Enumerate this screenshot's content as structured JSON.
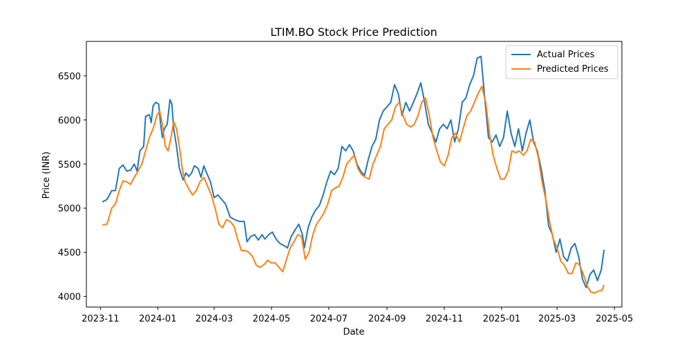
{
  "chart_data": {
    "type": "line",
    "title": "LTIM.BO Stock Price Prediction",
    "xlabel": "Date",
    "ylabel": "Price (INR)",
    "x_ticks": [
      "2023-11",
      "2024-01",
      "2024-03",
      "2024-05",
      "2024-07",
      "2024-09",
      "2024-11",
      "2025-01",
      "2025-03",
      "2025-05"
    ],
    "y_ticks": [
      4000,
      4500,
      5000,
      5500,
      6000,
      6500
    ],
    "xlim": [
      "2023-10-17",
      "2025-05-09"
    ],
    "ylim": [
      3880,
      6890
    ],
    "grid": false,
    "legend_position": "top-right",
    "series": [
      {
        "name": "Actual Prices",
        "color": "#1f77b4",
        "points": [
          [
            "2023-11-03",
            5070
          ],
          [
            "2023-11-08",
            5100
          ],
          [
            "2023-11-13",
            5200
          ],
          [
            "2023-11-17",
            5200
          ],
          [
            "2023-11-21",
            5450
          ],
          [
            "2023-11-25",
            5490
          ],
          [
            "2023-11-29",
            5420
          ],
          [
            "2023-12-03",
            5430
          ],
          [
            "2023-12-07",
            5500
          ],
          [
            "2023-12-10",
            5420
          ],
          [
            "2023-12-13",
            5650
          ],
          [
            "2023-12-17",
            5700
          ],
          [
            "2023-12-19",
            6040
          ],
          [
            "2023-12-23",
            6060
          ],
          [
            "2023-12-25",
            5970
          ],
          [
            "2023-12-27",
            6160
          ],
          [
            "2023-12-30",
            6200
          ],
          [
            "2024-01-02",
            6180
          ],
          [
            "2024-01-04",
            5950
          ],
          [
            "2024-01-06",
            5800
          ],
          [
            "2024-01-08",
            5900
          ],
          [
            "2024-01-11",
            5950
          ],
          [
            "2024-01-14",
            6230
          ],
          [
            "2024-01-16",
            6180
          ],
          [
            "2024-01-18",
            5900
          ],
          [
            "2024-01-21",
            5700
          ],
          [
            "2024-01-24",
            5450
          ],
          [
            "2024-01-28",
            5320
          ],
          [
            "2024-01-31",
            5400
          ],
          [
            "2024-02-03",
            5360
          ],
          [
            "2024-02-06",
            5400
          ],
          [
            "2024-02-09",
            5480
          ],
          [
            "2024-02-13",
            5450
          ],
          [
            "2024-02-16",
            5350
          ],
          [
            "2024-02-19",
            5480
          ],
          [
            "2024-02-22",
            5400
          ],
          [
            "2024-02-26",
            5300
          ],
          [
            "2024-03-01",
            5120
          ],
          [
            "2024-03-05",
            5150
          ],
          [
            "2024-03-09",
            5100
          ],
          [
            "2024-03-13",
            5050
          ],
          [
            "2024-03-18",
            4900
          ],
          [
            "2024-03-23",
            4870
          ],
          [
            "2024-03-28",
            4850
          ],
          [
            "2024-04-02",
            4850
          ],
          [
            "2024-04-05",
            4620
          ],
          [
            "2024-04-09",
            4680
          ],
          [
            "2024-04-13",
            4700
          ],
          [
            "2024-04-17",
            4640
          ],
          [
            "2024-04-21",
            4700
          ],
          [
            "2024-04-24",
            4650
          ],
          [
            "2024-04-28",
            4700
          ],
          [
            "2024-05-02",
            4730
          ],
          [
            "2024-05-06",
            4650
          ],
          [
            "2024-05-10",
            4600
          ],
          [
            "2024-05-14",
            4580
          ],
          [
            "2024-05-18",
            4550
          ],
          [
            "2024-05-22",
            4680
          ],
          [
            "2024-05-26",
            4750
          ],
          [
            "2024-05-30",
            4820
          ],
          [
            "2024-06-03",
            4700
          ],
          [
            "2024-06-05",
            4550
          ],
          [
            "2024-06-09",
            4780
          ],
          [
            "2024-06-13",
            4900
          ],
          [
            "2024-06-17",
            4980
          ],
          [
            "2024-06-21",
            5030
          ],
          [
            "2024-06-25",
            5150
          ],
          [
            "2024-06-29",
            5300
          ],
          [
            "2024-07-03",
            5420
          ],
          [
            "2024-07-07",
            5380
          ],
          [
            "2024-07-11",
            5450
          ],
          [
            "2024-07-15",
            5700
          ],
          [
            "2024-07-19",
            5650
          ],
          [
            "2024-07-23",
            5720
          ],
          [
            "2024-07-27",
            5650
          ],
          [
            "2024-07-31",
            5500
          ],
          [
            "2024-08-04",
            5420
          ],
          [
            "2024-08-08",
            5370
          ],
          [
            "2024-08-12",
            5550
          ],
          [
            "2024-08-16",
            5700
          ],
          [
            "2024-08-20",
            5780
          ],
          [
            "2024-08-24",
            6000
          ],
          [
            "2024-08-28",
            6100
          ],
          [
            "2024-09-01",
            6150
          ],
          [
            "2024-09-05",
            6200
          ],
          [
            "2024-09-09",
            6400
          ],
          [
            "2024-09-13",
            6300
          ],
          [
            "2024-09-17",
            6050
          ],
          [
            "2024-09-21",
            6200
          ],
          [
            "2024-09-25",
            6100
          ],
          [
            "2024-09-29",
            6200
          ],
          [
            "2024-10-03",
            6300
          ],
          [
            "2024-10-07",
            6420
          ],
          [
            "2024-10-11",
            6200
          ],
          [
            "2024-10-15",
            5950
          ],
          [
            "2024-10-19",
            5850
          ],
          [
            "2024-10-23",
            5750
          ],
          [
            "2024-10-27",
            5900
          ],
          [
            "2024-10-31",
            5950
          ],
          [
            "2024-11-04",
            5900
          ],
          [
            "2024-11-08",
            6000
          ],
          [
            "2024-11-12",
            5750
          ],
          [
            "2024-11-16",
            5900
          ],
          [
            "2024-11-20",
            6200
          ],
          [
            "2024-11-24",
            6250
          ],
          [
            "2024-11-28",
            6400
          ],
          [
            "2024-12-02",
            6500
          ],
          [
            "2024-12-06",
            6700
          ],
          [
            "2024-12-10",
            6720
          ],
          [
            "2024-12-14",
            6250
          ],
          [
            "2024-12-18",
            5800
          ],
          [
            "2024-12-22",
            5750
          ],
          [
            "2024-12-26",
            5830
          ],
          [
            "2024-12-30",
            5700
          ],
          [
            "2025-01-03",
            5800
          ],
          [
            "2025-01-07",
            6100
          ],
          [
            "2025-01-11",
            5850
          ],
          [
            "2025-01-15",
            5700
          ],
          [
            "2025-01-19",
            5900
          ],
          [
            "2025-01-23",
            5650
          ],
          [
            "2025-01-27",
            5850
          ],
          [
            "2025-01-31",
            6000
          ],
          [
            "2025-02-04",
            5750
          ],
          [
            "2025-02-08",
            5650
          ],
          [
            "2025-02-12",
            5450
          ],
          [
            "2025-02-16",
            5200
          ],
          [
            "2025-02-20",
            4800
          ],
          [
            "2025-02-24",
            4700
          ],
          [
            "2025-02-28",
            4500
          ],
          [
            "2025-03-04",
            4650
          ],
          [
            "2025-03-08",
            4450
          ],
          [
            "2025-03-12",
            4400
          ],
          [
            "2025-03-16",
            4550
          ],
          [
            "2025-03-20",
            4600
          ],
          [
            "2025-03-24",
            4450
          ],
          [
            "2025-03-28",
            4200
          ],
          [
            "2025-04-01",
            4100
          ],
          [
            "2025-04-05",
            4250
          ],
          [
            "2025-04-09",
            4300
          ],
          [
            "2025-04-13",
            4180
          ],
          [
            "2025-04-17",
            4300
          ],
          [
            "2025-04-20",
            4530
          ]
        ]
      },
      {
        "name": "Predicted Prices",
        "color": "#ff7f0e",
        "points": [
          [
            "2023-11-03",
            4810
          ],
          [
            "2023-11-08",
            4820
          ],
          [
            "2023-11-13",
            5000
          ],
          [
            "2023-11-17",
            5050
          ],
          [
            "2023-11-21",
            5200
          ],
          [
            "2023-11-25",
            5310
          ],
          [
            "2023-11-29",
            5300
          ],
          [
            "2023-12-03",
            5270
          ],
          [
            "2023-12-07",
            5350
          ],
          [
            "2023-12-11",
            5420
          ],
          [
            "2023-12-15",
            5500
          ],
          [
            "2023-12-19",
            5650
          ],
          [
            "2023-12-23",
            5800
          ],
          [
            "2023-12-27",
            5900
          ],
          [
            "2023-12-31",
            6050
          ],
          [
            "2024-01-03",
            6100
          ],
          [
            "2024-01-06",
            5950
          ],
          [
            "2024-01-09",
            5700
          ],
          [
            "2024-01-12",
            5650
          ],
          [
            "2024-01-15",
            5800
          ],
          [
            "2024-01-18",
            5980
          ],
          [
            "2024-01-21",
            5900
          ],
          [
            "2024-01-24",
            5700
          ],
          [
            "2024-01-27",
            5450
          ],
          [
            "2024-01-30",
            5300
          ],
          [
            "2024-02-03",
            5220
          ],
          [
            "2024-02-07",
            5150
          ],
          [
            "2024-02-11",
            5200
          ],
          [
            "2024-02-15",
            5300
          ],
          [
            "2024-02-19",
            5350
          ],
          [
            "2024-02-23",
            5250
          ],
          [
            "2024-02-27",
            5150
          ],
          [
            "2024-03-02",
            5000
          ],
          [
            "2024-03-06",
            4820
          ],
          [
            "2024-03-10",
            4780
          ],
          [
            "2024-03-14",
            4870
          ],
          [
            "2024-03-18",
            4850
          ],
          [
            "2024-03-22",
            4800
          ],
          [
            "2024-03-26",
            4650
          ],
          [
            "2024-03-30",
            4520
          ],
          [
            "2024-04-03",
            4520
          ],
          [
            "2024-04-07",
            4500
          ],
          [
            "2024-04-11",
            4450
          ],
          [
            "2024-04-15",
            4350
          ],
          [
            "2024-04-19",
            4330
          ],
          [
            "2024-04-23",
            4360
          ],
          [
            "2024-04-27",
            4410
          ],
          [
            "2024-05-01",
            4380
          ],
          [
            "2024-05-05",
            4380
          ],
          [
            "2024-05-09",
            4330
          ],
          [
            "2024-05-13",
            4280
          ],
          [
            "2024-05-17",
            4420
          ],
          [
            "2024-05-21",
            4550
          ],
          [
            "2024-05-25",
            4620
          ],
          [
            "2024-05-29",
            4700
          ],
          [
            "2024-06-02",
            4680
          ],
          [
            "2024-06-06",
            4420
          ],
          [
            "2024-06-10",
            4500
          ],
          [
            "2024-06-14",
            4700
          ],
          [
            "2024-06-18",
            4820
          ],
          [
            "2024-06-22",
            4880
          ],
          [
            "2024-06-26",
            4950
          ],
          [
            "2024-06-30",
            5050
          ],
          [
            "2024-07-04",
            5200
          ],
          [
            "2024-07-08",
            5230
          ],
          [
            "2024-07-12",
            5250
          ],
          [
            "2024-07-16",
            5350
          ],
          [
            "2024-07-20",
            5500
          ],
          [
            "2024-07-24",
            5550
          ],
          [
            "2024-07-28",
            5600
          ],
          [
            "2024-08-01",
            5450
          ],
          [
            "2024-08-05",
            5380
          ],
          [
            "2024-08-09",
            5350
          ],
          [
            "2024-08-13",
            5330
          ],
          [
            "2024-08-17",
            5500
          ],
          [
            "2024-08-21",
            5600
          ],
          [
            "2024-08-25",
            5700
          ],
          [
            "2024-08-29",
            5900
          ],
          [
            "2024-09-02",
            5950
          ],
          [
            "2024-09-06",
            6000
          ],
          [
            "2024-09-10",
            6150
          ],
          [
            "2024-09-14",
            6200
          ],
          [
            "2024-09-18",
            6050
          ],
          [
            "2024-09-22",
            5950
          ],
          [
            "2024-09-26",
            5920
          ],
          [
            "2024-09-30",
            5950
          ],
          [
            "2024-10-04",
            6050
          ],
          [
            "2024-10-08",
            6200
          ],
          [
            "2024-10-12",
            6250
          ],
          [
            "2024-10-16",
            6050
          ],
          [
            "2024-10-20",
            5800
          ],
          [
            "2024-10-24",
            5650
          ],
          [
            "2024-10-28",
            5520
          ],
          [
            "2024-11-01",
            5480
          ],
          [
            "2024-11-05",
            5600
          ],
          [
            "2024-11-09",
            5800
          ],
          [
            "2024-11-13",
            5850
          ],
          [
            "2024-11-17",
            5750
          ],
          [
            "2024-11-21",
            5900
          ],
          [
            "2024-11-25",
            6050
          ],
          [
            "2024-11-29",
            6100
          ],
          [
            "2024-12-03",
            6200
          ],
          [
            "2024-12-07",
            6300
          ],
          [
            "2024-12-11",
            6380
          ],
          [
            "2024-12-15",
            6200
          ],
          [
            "2024-12-19",
            5850
          ],
          [
            "2024-12-23",
            5600
          ],
          [
            "2024-12-27",
            5450
          ],
          [
            "2024-12-31",
            5330
          ],
          [
            "2025-01-04",
            5330
          ],
          [
            "2025-01-08",
            5420
          ],
          [
            "2025-01-12",
            5650
          ],
          [
            "2025-01-16",
            5630
          ],
          [
            "2025-01-20",
            5650
          ],
          [
            "2025-01-24",
            5600
          ],
          [
            "2025-01-28",
            5650
          ],
          [
            "2025-02-01",
            5780
          ],
          [
            "2025-02-05",
            5750
          ],
          [
            "2025-02-09",
            5580
          ],
          [
            "2025-02-13",
            5300
          ],
          [
            "2025-02-17",
            5100
          ],
          [
            "2025-02-21",
            4850
          ],
          [
            "2025-02-25",
            4650
          ],
          [
            "2025-03-01",
            4550
          ],
          [
            "2025-03-05",
            4400
          ],
          [
            "2025-03-09",
            4350
          ],
          [
            "2025-03-13",
            4260
          ],
          [
            "2025-03-17",
            4260
          ],
          [
            "2025-03-21",
            4380
          ],
          [
            "2025-03-25",
            4360
          ],
          [
            "2025-03-29",
            4250
          ],
          [
            "2025-04-02",
            4120
          ],
          [
            "2025-04-06",
            4050
          ],
          [
            "2025-04-10",
            4040
          ],
          [
            "2025-04-14",
            4060
          ],
          [
            "2025-04-18",
            4070
          ],
          [
            "2025-04-20",
            4130
          ]
        ]
      }
    ]
  }
}
